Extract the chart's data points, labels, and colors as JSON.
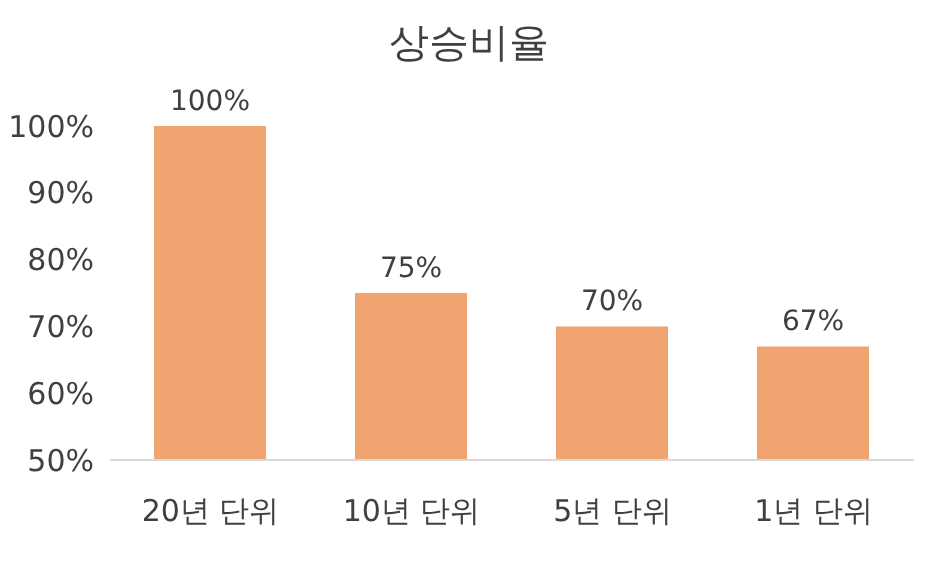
{
  "chart_data": {
    "type": "bar",
    "title": "상승비율",
    "categories": [
      "20년 단위",
      "10년 단위",
      "5년 단위",
      "1년 단위"
    ],
    "values": [
      100,
      75,
      70,
      67
    ],
    "color": "#f0a46f",
    "value_labels": [
      "100%",
      "75%",
      "70%",
      "67%"
    ],
    "ylim": [
      50,
      100
    ],
    "yticks": [
      {
        "value": 50,
        "label": "50%"
      },
      {
        "value": 60,
        "label": "60%"
      },
      {
        "value": 70,
        "label": "70%"
      },
      {
        "value": 80,
        "label": "80%"
      },
      {
        "value": 90,
        "label": "90%"
      },
      {
        "value": 100,
        "label": "100%"
      }
    ],
    "grid": false,
    "legend": false
  }
}
